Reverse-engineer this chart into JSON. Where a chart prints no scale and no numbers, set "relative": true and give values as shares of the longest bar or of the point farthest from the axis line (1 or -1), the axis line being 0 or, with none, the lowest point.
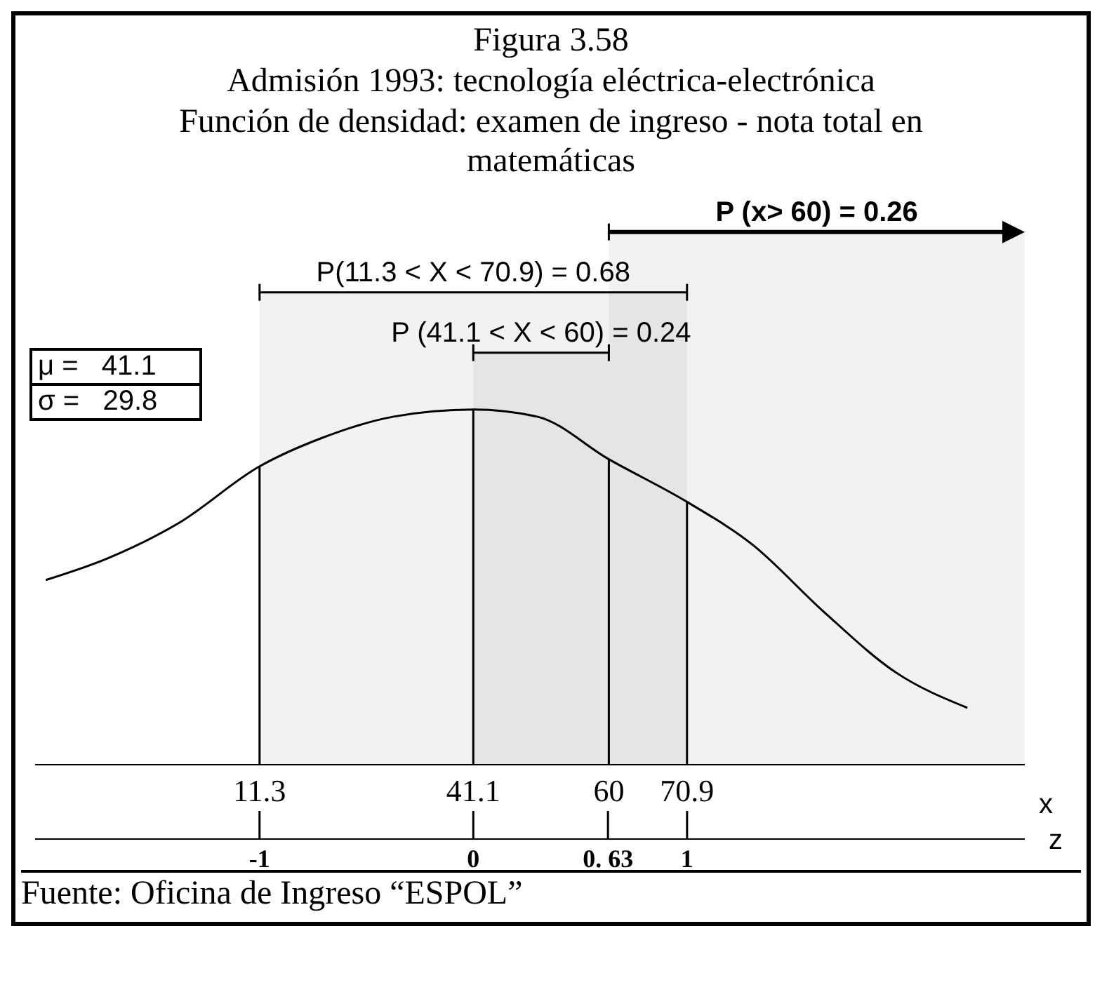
{
  "chart_data": {
    "type": "line",
    "title": "Figura 3.58",
    "subtitle": "Admisión 1993: tecnología eléctrica-electrónica\nFunción de densidad: examen de ingreso - nota total en matemáticas",
    "xlabel": "x",
    "x2label": "z",
    "relative": true,
    "x": [
      -18.5,
      -10,
      0,
      11.3,
      20,
      30,
      41.1,
      50,
      60,
      70.9,
      80,
      90,
      100,
      110
    ],
    "series": [
      {
        "color": "#000000",
        "values": [
          0.52,
          0.58,
          0.68,
          0.84,
          0.92,
          0.98,
          1,
          0.98,
          0.86,
          0.74,
          0.62,
          0.43,
          0.26,
          0.16
        ]
      }
    ],
    "xlim": [
      -20,
      118
    ],
    "xticks": [
      11.3,
      41.1,
      60,
      70.9
    ],
    "x2lim": [
      -2.05,
      2.58
    ],
    "x2ticks": [
      -1,
      0,
      {
        "value": 0.63,
        "label": "0. 63"
      },
      1
    ],
    "ref_lines": [
      {
        "axis": "x",
        "value": 11.3,
        "label": null
      },
      {
        "axis": "x",
        "value": 41.1,
        "label": null
      },
      {
        "axis": "x",
        "value": 60,
        "label": null
      },
      {
        "axis": "x",
        "value": 70.9,
        "label": null
      }
    ],
    "bands": [
      {
        "axis": "x",
        "from": 60,
        "to": 118,
        "label": "P (x> 60) = 0.26"
      },
      {
        "axis": "x",
        "from": 11.3,
        "to": 70.9,
        "label": "P(11.3 < X < 70.9) = 0.68"
      },
      {
        "axis": "x",
        "from": 41.1,
        "to": 60,
        "label": "P (41.1 < X < 60) = 0.24"
      }
    ],
    "annotations": [
      "μ =   41.1",
      "σ =   29.8",
      "Fuente: Oficina de Ingreso “ESPOL”"
    ]
  }
}
